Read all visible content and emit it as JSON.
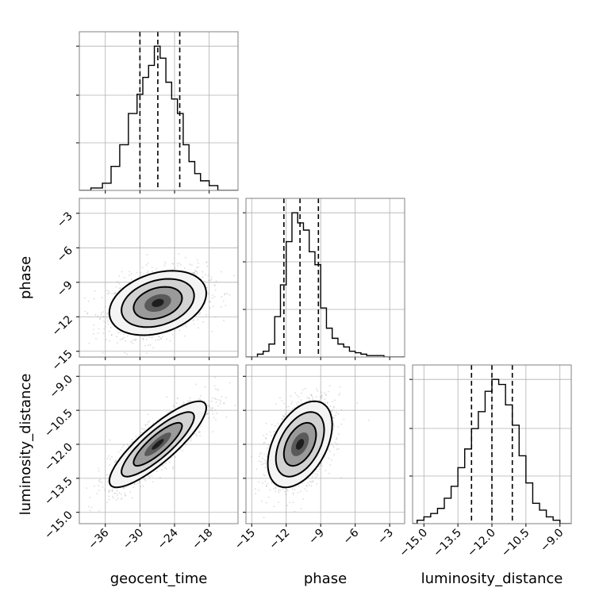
{
  "chart_data": {
    "type": "corner",
    "parameters": [
      {
        "name": "geocent_time",
        "range": [
          -40.5,
          -13.0
        ],
        "ticks": [
          -36,
          -30,
          -24,
          -18
        ],
        "tick_labels": [
          "−36",
          "−30",
          "−24",
          "−18"
        ],
        "quantiles": [
          -30.0,
          -26.9,
          -23.1
        ],
        "hist": {
          "bin_edges": [
            -40.5,
            -38.5,
            -36.5,
            -35.0,
            -33.5,
            -32.0,
            -30.5,
            -29.5,
            -28.5,
            -27.5,
            -26.5,
            -25.5,
            -24.5,
            -23.5,
            -22.5,
            -21.5,
            -20.5,
            -19.5,
            -18.0,
            -16.5,
            -15.0,
            -13.0
          ],
          "counts": [
            0,
            1,
            3,
            10,
            19,
            32,
            40,
            47,
            52,
            60,
            55,
            45,
            38,
            32,
            19,
            12,
            7,
            4,
            2,
            0,
            0
          ]
        }
      },
      {
        "name": "phase",
        "range": [
          -15.5,
          -1.7
        ],
        "ticks": [
          -15,
          -12,
          -9,
          -6,
          -3
        ],
        "tick_labels": [
          "−15",
          "−12",
          "−9",
          "−6",
          "−3"
        ],
        "quantiles": [
          -12.2,
          -10.8,
          -9.2
        ],
        "hist": {
          "bin_edges": [
            -15.5,
            -14.5,
            -14.0,
            -13.5,
            -13.0,
            -12.5,
            -12.0,
            -11.5,
            -11.0,
            -10.5,
            -10.0,
            -9.5,
            -9.0,
            -8.5,
            -8.0,
            -7.5,
            -7.0,
            -6.5,
            -6.0,
            -5.5,
            -5.0,
            -4.5,
            -3.5,
            -2.5,
            -1.7
          ],
          "counts": [
            0,
            2,
            4,
            9,
            28,
            50,
            80,
            100,
            93,
            88,
            73,
            64,
            34,
            20,
            13,
            9,
            7,
            4,
            3,
            2,
            1,
            1,
            0,
            0
          ]
        }
      },
      {
        "name": "luminosity_distance",
        "range": [
          -15.5,
          -8.5
        ],
        "ticks": [
          -15.0,
          -13.5,
          -12.0,
          -10.5,
          -9.0
        ],
        "tick_labels": [
          "−15.0",
          "−13.5",
          "−12.0",
          "−10.5",
          "−9.0"
        ],
        "quantiles": [
          -12.9,
          -12.0,
          -11.1
        ],
        "hist": {
          "bin_edges": [
            -15.5,
            -15.3,
            -15.0,
            -14.7,
            -14.4,
            -14.1,
            -13.8,
            -13.5,
            -13.2,
            -12.9,
            -12.6,
            -12.3,
            -12.0,
            -11.7,
            -11.4,
            -11.1,
            -10.8,
            -10.5,
            -10.2,
            -9.9,
            -9.6,
            -9.3,
            -9.0,
            -8.7,
            -8.5
          ],
          "counts": [
            0,
            2,
            4,
            6,
            9,
            15,
            22,
            33,
            44,
            56,
            66,
            78,
            85,
            82,
            70,
            58,
            40,
            24,
            12,
            8,
            4,
            2,
            0,
            0
          ]
        }
      }
    ],
    "pairs": [
      {
        "x": 0,
        "y": 1,
        "mean": [
          -26.9,
          -10.8
        ],
        "sd": [
          4.2,
          1.4
        ],
        "rho": 0.3
      },
      {
        "x": 0,
        "y": 2,
        "mean": [
          -26.9,
          -12.0
        ],
        "sd": [
          4.2,
          0.95
        ],
        "rho": 0.85
      },
      {
        "x": 1,
        "y": 2,
        "mean": [
          -10.8,
          -12.0
        ],
        "sd": [
          1.4,
          0.95
        ],
        "rho": 0.45
      }
    ],
    "grid": true,
    "sample_color": "#9a9a9a",
    "contour_color": "#000000"
  }
}
